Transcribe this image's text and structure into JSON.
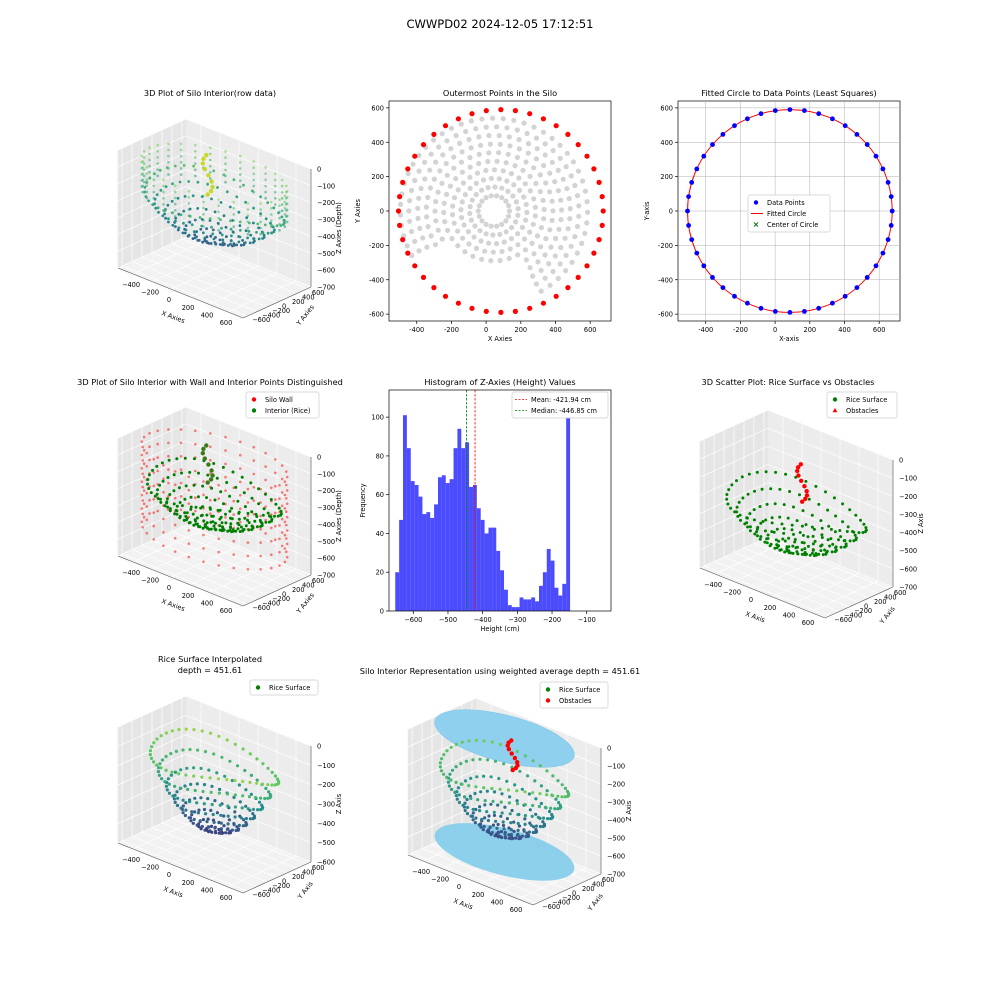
{
  "suptitle": "CWWPD02 2024-12-05 17:12:51",
  "colors": {
    "wall": "#ff0000",
    "rice": "#008000",
    "outer": "#ff0000",
    "inner": "#d3d3d3",
    "data_points": "#0000ff",
    "fitted": "#ff0000",
    "center": "#008000",
    "hist": "#0000ff",
    "mean_line": "#ff0000",
    "median_line": "#008000",
    "cylinder": "#87ceeb"
  },
  "chart_data": [
    {
      "id": "p1",
      "type": "scatter3d",
      "title": "3D Plot of Silo Interior(row data)",
      "xlabel": "X Axies",
      "ylabel": "Y Axies",
      "zlabel": "Z Axies (Depth)",
      "xticks": [
        "−400",
        "−200",
        "0",
        "200",
        "400",
        "600"
      ],
      "yticks": [
        "−600",
        "−400",
        "−200",
        "0",
        "200",
        "400",
        "600"
      ],
      "zticks": [
        "0",
        "−100",
        "−200",
        "−300",
        "−400",
        "−500",
        "−600",
        "−700"
      ],
      "colormap": "viridis"
    },
    {
      "id": "p2",
      "type": "scatter",
      "title": "Outermost Points in the Silo",
      "xlabel": "X Axies",
      "ylabel": "Y Axies",
      "xlim": [
        -560,
        720
      ],
      "ylim": [
        -640,
        640
      ],
      "xticks": [
        -400,
        -200,
        0,
        200,
        400,
        600
      ],
      "yticks": [
        -600,
        -400,
        -200,
        0,
        200,
        400,
        600
      ],
      "circle_center": [
        85,
        0
      ],
      "circle_radius": 590,
      "outer_point_count": 44,
      "inner_rings": [
        90,
        140,
        190,
        240,
        290,
        340,
        390,
        440,
        490,
        540
      ]
    },
    {
      "id": "p3",
      "type": "scatter",
      "title": "Fitted Circle to Data Points (Least Squares)",
      "xlabel": "X-axis",
      "ylabel": "Y-axis",
      "xlim": [
        -560,
        720
      ],
      "ylim": [
        -640,
        640
      ],
      "xticks": [
        -400,
        -200,
        0,
        200,
        400,
        600
      ],
      "yticks": [
        -600,
        -400,
        -200,
        0,
        200,
        400,
        600
      ],
      "grid": true,
      "center": [
        85,
        0
      ],
      "radius": 590,
      "point_count": 44,
      "legend": [
        "Data Points",
        "Fitted Circle",
        "Center of Circle"
      ],
      "legend_loc": "center"
    },
    {
      "id": "p4",
      "type": "scatter3d",
      "title": "3D Plot of Silo Interior with Wall and Interior Points Distinguished",
      "xlabel": "X Axies",
      "ylabel": "Y Axies",
      "zlabel": "Z Axies (Depth)",
      "xticks": [
        "−400",
        "−200",
        "0",
        "200",
        "400",
        "600"
      ],
      "yticks": [
        "−600",
        "−400",
        "−200",
        "0",
        "200",
        "400",
        "600"
      ],
      "zticks": [
        "0",
        "−100",
        "−200",
        "−300",
        "−400",
        "−500",
        "−600",
        "−700"
      ],
      "legend": [
        "Silo Wall",
        "Interior (Rice)"
      ],
      "legend_loc": "top-right"
    },
    {
      "id": "p5",
      "type": "bar",
      "title": "Histogram of Z-Axies (Height) Values",
      "xlabel": "Height (cm)",
      "ylabel": "Frequency",
      "xlim": [
        -670,
        -30
      ],
      "ylim": [
        0,
        114
      ],
      "xticks": [
        -600,
        -500,
        -400,
        -300,
        -200,
        -100
      ],
      "yticks": [
        0,
        20,
        40,
        60,
        80,
        100
      ],
      "bin_start": -652,
      "bin_width": 11.2,
      "values": [
        20,
        47,
        101,
        84,
        67,
        65,
        59,
        50,
        51,
        48,
        55,
        69,
        70,
        66,
        68,
        84,
        94,
        84,
        87,
        64,
        65,
        53,
        47,
        40,
        43,
        43,
        31,
        21,
        11,
        3,
        2,
        2,
        7,
        6,
        6,
        7,
        5,
        13,
        20,
        32,
        26,
        12,
        8,
        14,
        104
      ],
      "mean": -421.94,
      "median": -446.85,
      "legend": [
        "Mean: -421.94 cm",
        "Median: -446.85 cm"
      ],
      "legend_loc": "top-right"
    },
    {
      "id": "p6",
      "type": "scatter3d",
      "title": "3D Scatter Plot: Rice Surface vs Obstacles",
      "xlabel": "X Axis",
      "ylabel": "Y Axis",
      "zlabel": "Z Axis",
      "xticks": [
        "−400",
        "−200",
        "0",
        "200",
        "400",
        "600"
      ],
      "yticks": [
        "−600",
        "−400",
        "−200",
        "0",
        "200",
        "400",
        "600"
      ],
      "zticks": [
        "0",
        "−100",
        "−200",
        "−300",
        "−400",
        "−500",
        "−600",
        "−700"
      ],
      "legend": [
        "Rice Surface",
        "Obstacles"
      ],
      "legend_loc": "top-right"
    },
    {
      "id": "p7",
      "type": "surface3d",
      "title": "Rice Surface Interpolated\ndepth = 451.61",
      "title_line1": "Rice Surface Interpolated",
      "title_line2": "depth = 451.61",
      "xlabel": "X Axis",
      "ylabel": "Y Axis",
      "zlabel": "Z Axis",
      "xticks": [
        "−400",
        "−200",
        "0",
        "200",
        "400",
        "600"
      ],
      "yticks": [
        "−600",
        "−400",
        "−200",
        "0",
        "200",
        "400",
        "600"
      ],
      "zticks": [
        "0",
        "−100",
        "−200",
        "−300",
        "−400",
        "−500",
        "−600"
      ],
      "legend": [
        "Rice Surface"
      ],
      "legend_loc": "top-right"
    },
    {
      "id": "p8",
      "type": "surface3d",
      "title": "Silo Interior Representation using weighted average depth = 451.61",
      "xlabel": "X Axis",
      "ylabel": "Y Axis",
      "zlabel": "Z Axis",
      "xticks": [
        "−400",
        "−200",
        "0",
        "200",
        "400",
        "600"
      ],
      "yticks": [
        "−600",
        "−400",
        "−200",
        "0",
        "200",
        "400",
        "600"
      ],
      "zticks": [
        "0",
        "−100",
        "−200",
        "−300",
        "−400",
        "−500",
        "−600",
        "−700"
      ],
      "legend": [
        "Rice Surface",
        "Obstacles"
      ],
      "legend_loc": "top-right"
    }
  ]
}
